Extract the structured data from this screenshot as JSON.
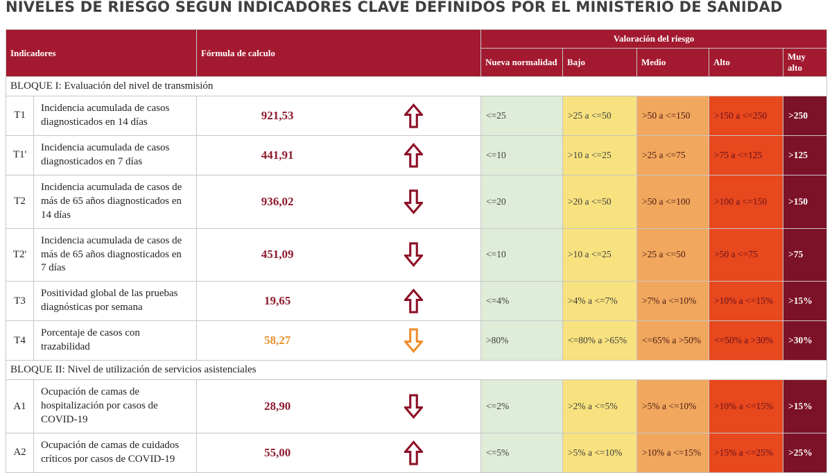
{
  "page": {
    "title": "NIVELES DE RIESGO SEGÚN INDICADORES CLAVE DEFINIDOS POR EL MINISTERIO DE SANIDAD"
  },
  "chart_data": {
    "type": "table",
    "headers": {
      "indicators": "Indicadores",
      "formula": "Fórmula de calculo",
      "valuation": "Valoración del riesgo",
      "levels": [
        "Nueva normalidad",
        "Bajo",
        "Medio",
        "Alto",
        "Muy alto"
      ]
    },
    "sections": [
      {
        "label": "BLOQUE I: Evaluación del nivel de transmisión",
        "rows": [
          {
            "code": "T1",
            "description": "Incidencia acumulada de casos diagnosticados en 14 días",
            "value": "921,53",
            "value_color": "#8e1b2e",
            "trend": "up",
            "trend_color": "#8e1127",
            "thresholds": [
              "<=25",
              ">25 a <=50",
              ">50 a <=150",
              ">150 a <=250",
              ">250"
            ]
          },
          {
            "code": "T1'",
            "description": "Incidencia acumulada de casos diagnosticados en 7 días",
            "value": "441,91",
            "value_color": "#8e1b2e",
            "trend": "up",
            "trend_color": "#8e1127",
            "thresholds": [
              "<=10",
              ">10 a <=25",
              ">25 a <=75",
              ">75 a <=125",
              ">125"
            ]
          },
          {
            "code": "T2",
            "description": "Incidencia acumulada de casos de más de 65 años diagnosticados en 14 días",
            "value": "936,02",
            "value_color": "#8e1b2e",
            "trend": "down",
            "trend_color": "#8e1127",
            "thresholds": [
              "<=20",
              ">20 a <=50",
              ">50 a <=100",
              ">100 a <=150",
              ">150"
            ]
          },
          {
            "code": "T2'",
            "description": "Incidencia acumulada de casos de más de 65 años diagnosticados en 7 días",
            "value": "451,09",
            "value_color": "#8e1b2e",
            "trend": "down",
            "trend_color": "#8e1127",
            "thresholds": [
              "<=10",
              ">10 a <=25",
              ">25 a <=50",
              ">50 a <=75",
              ">75"
            ]
          },
          {
            "code": "T3",
            "description": "Positividad global de las pruebas diagnósticas por semana",
            "value": "19,65",
            "value_color": "#8e1b2e",
            "trend": "up",
            "trend_color": "#8e1127",
            "thresholds": [
              "<=4%",
              ">4% a <=7%",
              ">7% a <=10%",
              ">10% a <=15%",
              ">15%"
            ]
          },
          {
            "code": "T4",
            "description": "Porcentaje de casos con trazabilidad",
            "value": "58,27",
            "value_color": "#e8912f",
            "trend": "down",
            "trend_color": "#ef8e2d",
            "thresholds": [
              ">80%",
              "<=80% a >65%",
              "<=65% a >50%",
              "<=50% a >30%",
              ">30%"
            ]
          }
        ]
      },
      {
        "label": "BLOQUE II: Nivel de utilización de servicios asistenciales",
        "rows": [
          {
            "code": "A1",
            "description": "Ocupación de camas de hospitalización por casos de COVID-19",
            "value": "28,90",
            "value_color": "#8e1b2e",
            "trend": "down",
            "trend_color": "#8e1127",
            "thresholds": [
              "<=2%",
              ">2% a <=5%",
              ">5% a <=10%",
              ">10% a <=15%",
              ">15%"
            ]
          },
          {
            "code": "A2",
            "description": "Ocupación de camas de cuidados críticos por casos de COVID-19",
            "value": "55,00",
            "value_color": "#8e1b2e",
            "trend": "up",
            "trend_color": "#8e1127",
            "thresholds": [
              "<=5%",
              ">5% a <=10%",
              ">10% a <=15%",
              ">15% a <=25%",
              ">25%"
            ]
          }
        ]
      }
    ]
  },
  "colors": {
    "header_bg": "#a31a30",
    "title_text": "#3f3f3f",
    "levels": [
      {
        "bg": "#dfecd8",
        "text": "#3c3c3c"
      },
      {
        "bg": "#f8e27f",
        "text": "#3c3c3c"
      },
      {
        "bg": "#f2a75f",
        "text": "#4a1c10"
      },
      {
        "bg": "#e8481d",
        "text": "#64101d"
      },
      {
        "bg": "#7c1228",
        "text": "#ffffff"
      }
    ]
  }
}
